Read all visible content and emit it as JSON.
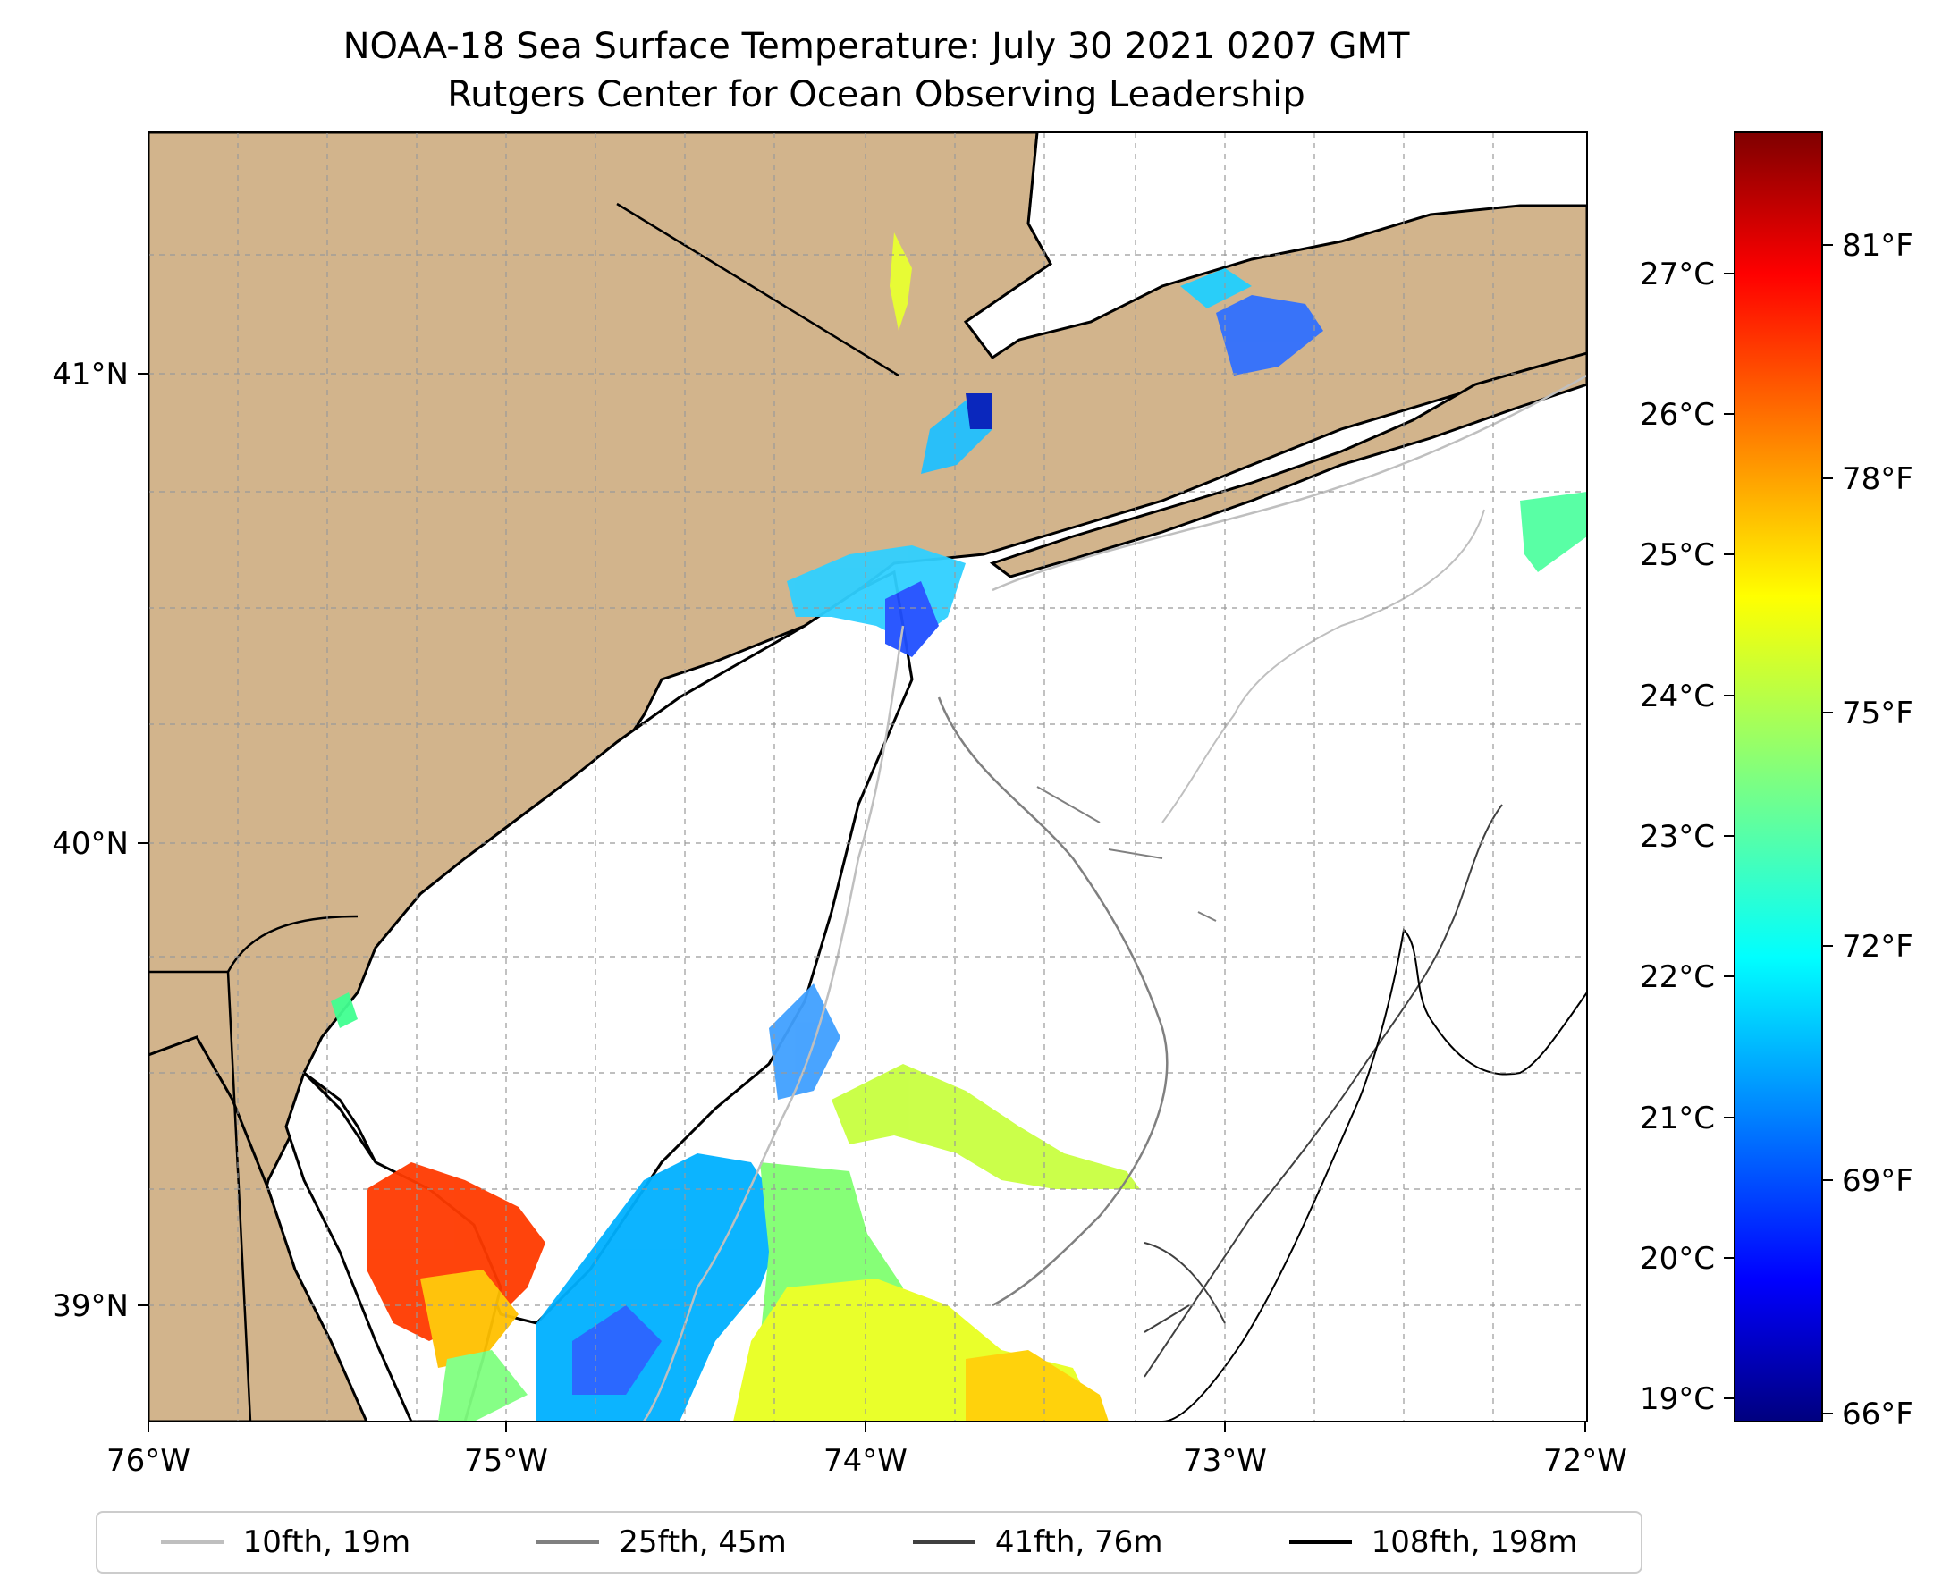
{
  "title": "NOAA-18 Sea Surface Temperature: July 30 2021 0207 GMT",
  "subtitle": "Rutgers Center for Ocean Observing Leadership",
  "map": {
    "lon_ticks": [
      "76°W",
      "75°W",
      "74°W",
      "73°W",
      "72°W"
    ],
    "lat_ticks": [
      "41°N",
      "40°N",
      "39°N"
    ],
    "land_color": "#d2b48c",
    "colormap": "jet"
  },
  "colorbar": {
    "celsius_ticks": [
      "27°C",
      "26°C",
      "25°C",
      "24°C",
      "23°C",
      "22°C",
      "21°C",
      "20°C",
      "19°C"
    ],
    "fahrenheit_ticks": [
      "81°F",
      "78°F",
      "75°F",
      "72°F",
      "69°F",
      "66°F"
    ]
  },
  "legend": [
    {
      "label": "10fth, 19m",
      "color": "#bfbfbf"
    },
    {
      "label": "25fth, 45m",
      "color": "#808080"
    },
    {
      "label": "41fth, 76m",
      "color": "#404040"
    },
    {
      "label": "108fth, 198m",
      "color": "#000000"
    }
  ]
}
